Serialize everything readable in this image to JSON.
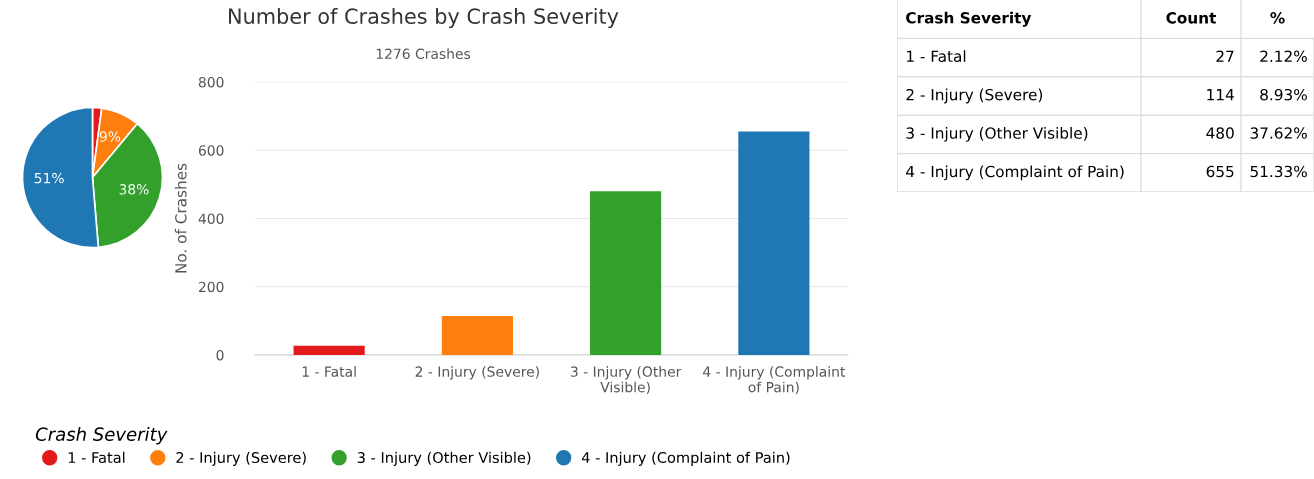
{
  "chart_data": [
    {
      "type": "pie",
      "categories": [
        "1 - Fatal",
        "2 - Injury (Severe)",
        "3 - Injury (Other Visible)",
        "4 - Injury (Complaint of Pain)"
      ],
      "values": [
        2.12,
        8.93,
        37.62,
        51.33
      ],
      "colors": [
        "#e31a1c",
        "#ff7f0e",
        "#33a02c",
        "#1f78b4"
      ],
      "value_labels": [
        null,
        "9%",
        "38%",
        "51%"
      ],
      "legend": "bottom right",
      "legend_title": "Crash Severity"
    },
    {
      "type": "bar",
      "title": "Number of Crashes by Crash Severity",
      "subtitle": "1276 Crashes",
      "ylabel": "No. of Crashes",
      "categories": [
        "1 - Fatal",
        "2 - Injury (Severe)",
        "3 - Injury (Other Visible)",
        "4 - Injury (Complaint of Pain)"
      ],
      "values": [
        27,
        114,
        480,
        655
      ],
      "colors": [
        "#e31a1c",
        "#ff7f0e",
        "#33a02c",
        "#1f78b4"
      ],
      "ylim": [
        0,
        800
      ],
      "yticks": [
        0,
        200,
        400,
        600,
        800
      ],
      "grid": "y"
    },
    {
      "type": "other",
      "title": "Crash Severity",
      "categories": [
        "1 - Fatal",
        "2 - Injury (Severe)",
        "3 - Injury (Other Visible)",
        "4 - Injury (Complaint of Pain)"
      ],
      "data_labels": true,
      "series": [
        {
          "name": "Count",
          "values": [
            27,
            114,
            480,
            655
          ]
        }
      ],
      "annotations": [
        "%",
        "2.12%",
        "8.93%",
        "37.62%",
        "51.33%"
      ]
    }
  ]
}
